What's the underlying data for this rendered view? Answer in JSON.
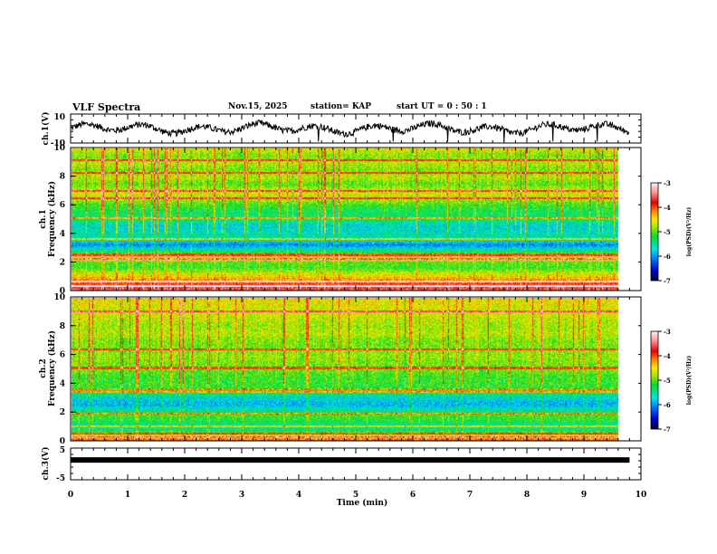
{
  "header": {
    "title": "VLF Spectra",
    "date": "Nov.15, 2025",
    "station": "station= KAP",
    "start": "start  UT =   0 : 50 : 1"
  },
  "chart_data": [
    {
      "type": "line",
      "name": "ch1 waveform",
      "ylabel": "ch.1(V)",
      "ylim": [
        -10,
        10
      ],
      "yticks": [
        "10",
        "-10"
      ],
      "xlim": [
        0,
        10
      ],
      "data_end_min": 9.8,
      "mean": 3,
      "amplitude": 4
    },
    {
      "type": "heatmap",
      "name": "ch1 spectrogram",
      "ylabel_top": "ch.1",
      "ylabel": "Frequency (kHz)",
      "ylim": [
        0,
        10
      ],
      "yticks": [
        "0",
        "2",
        "4",
        "6",
        "8",
        "10"
      ],
      "xlim": [
        0,
        10
      ],
      "data_end_min": 9.8,
      "band_profile_khz": [
        [
          0,
          -3.6
        ],
        [
          0.4,
          -3.8
        ],
        [
          0.8,
          -4.3
        ],
        [
          1.2,
          -4.7
        ],
        [
          1.6,
          -5.1
        ],
        [
          2.0,
          -5.0
        ],
        [
          2.2,
          -4.4
        ],
        [
          2.5,
          -4.9
        ],
        [
          2.9,
          -5.6
        ],
        [
          3.2,
          -6.1
        ],
        [
          3.6,
          -5.5
        ],
        [
          4.0,
          -5.6
        ],
        [
          4.6,
          -5.7
        ],
        [
          5.0,
          -5.3
        ],
        [
          5.5,
          -5.3
        ],
        [
          6.0,
          -5.1
        ],
        [
          6.5,
          -4.7
        ],
        [
          7.0,
          -4.6
        ],
        [
          7.5,
          -5.0
        ],
        [
          8.0,
          -4.7
        ],
        [
          8.5,
          -4.9
        ],
        [
          9.0,
          -4.7
        ],
        [
          9.5,
          -4.9
        ],
        [
          10,
          -4.6
        ]
      ],
      "lines_khz": [
        0.3,
        0.6,
        2.2,
        2.5,
        3.6,
        5.1,
        6.5,
        7.0,
        8.3,
        9.2
      ],
      "colorbar": {
        "label": "log(PSD)(V²/Hz)",
        "range": [
          -7,
          -3
        ],
        "ticks": [
          "-3",
          "-4",
          "-5",
          "-6",
          "-7"
        ]
      }
    },
    {
      "type": "heatmap",
      "name": "ch2 spectrogram",
      "ylabel_top": "ch.2",
      "ylabel": "Frequency (kHz)",
      "ylim": [
        0,
        10
      ],
      "yticks": [
        "0",
        "2",
        "4",
        "6",
        "8",
        "10"
      ],
      "xlim": [
        0,
        10
      ],
      "data_end_min": 9.8,
      "band_profile_khz": [
        [
          0,
          -4.0
        ],
        [
          0.3,
          -4.6
        ],
        [
          0.7,
          -5.3
        ],
        [
          1.0,
          -5.6
        ],
        [
          1.4,
          -5.2
        ],
        [
          1.8,
          -5.1
        ],
        [
          2.1,
          -5.5
        ],
        [
          2.5,
          -5.9
        ],
        [
          3.0,
          -5.7
        ],
        [
          3.5,
          -5.2
        ],
        [
          4.0,
          -5.1
        ],
        [
          4.5,
          -5.1
        ],
        [
          5.0,
          -4.9
        ],
        [
          5.5,
          -4.9
        ],
        [
          6.0,
          -4.8
        ],
        [
          6.5,
          -4.9
        ],
        [
          7.0,
          -4.9
        ],
        [
          7.5,
          -4.7
        ],
        [
          8.0,
          -4.8
        ],
        [
          8.5,
          -4.7
        ],
        [
          9.0,
          -4.6
        ],
        [
          9.5,
          -4.6
        ],
        [
          10,
          -4.5
        ]
      ],
      "lines_khz": [
        0.2,
        0.5,
        1.0,
        1.9,
        3.4,
        3.6,
        5.1,
        6.4,
        9.1
      ],
      "colorbar": {
        "label": "log(PSD)(V²/Hz)",
        "range": [
          -7,
          -3
        ],
        "ticks": [
          "-3",
          "-4",
          "-5",
          "-6",
          "-7"
        ]
      }
    },
    {
      "type": "line",
      "name": "ch3 waveform",
      "ylabel": "ch.3(V)",
      "ylim": [
        -5,
        5
      ],
      "yticks": [
        "5",
        "-5"
      ],
      "xlim": [
        0,
        10
      ],
      "data_end_min": 9.8,
      "mean": 1.5,
      "amplitude": 0.3
    }
  ],
  "xaxis": {
    "label": "Time  (min)",
    "ticks": [
      "0",
      "1",
      "2",
      "3",
      "4",
      "5",
      "6",
      "7",
      "8",
      "9",
      "10"
    ]
  }
}
